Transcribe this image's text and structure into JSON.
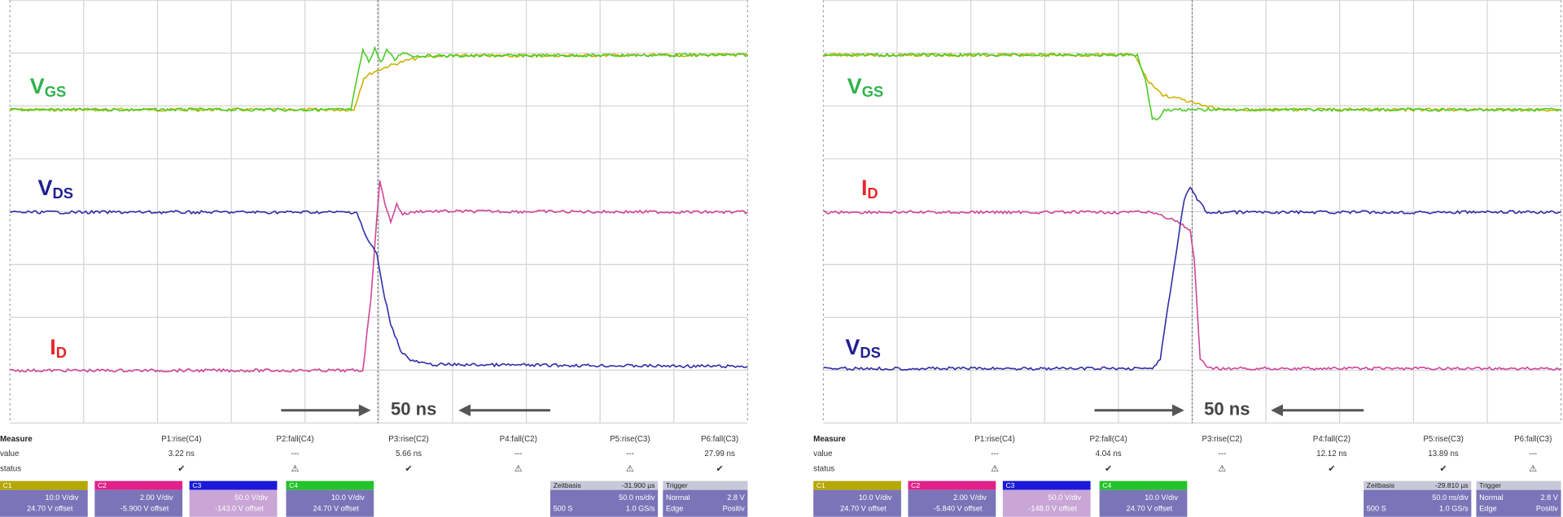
{
  "panels": [
    {
      "labels": {
        "vgs": {
          "main": "V",
          "sub": "GS",
          "color": "#2fb34a"
        },
        "vds": {
          "main": "V",
          "sub": "DS",
          "color": "#1f1f8f"
        },
        "id": {
          "main": "I",
          "sub": "D",
          "color": "#e8262b"
        }
      },
      "arrow_label": "50 ns",
      "measure": {
        "title": "Measure",
        "row_labels": [
          "value",
          "status"
        ],
        "columns": [
          "P1:rise(C4)",
          "P2:fall(C4)",
          "P3:rise(C2)",
          "P4:fall(C2)",
          "P5:rise(C3)",
          "P6:fall(C3)"
        ],
        "values": [
          "3.22 ns",
          "---",
          "5.66 ns",
          "---",
          "---",
          "27.99 ns"
        ],
        "status": [
          "✔",
          "⚠",
          "✔",
          "⚠",
          "⚠",
          "✔"
        ]
      },
      "channels": [
        {
          "name": "C1",
          "color": "#b5a800",
          "vdiv": "10.0 V/div",
          "offset": "24.70 V offset"
        },
        {
          "name": "C2",
          "color": "#e0228a",
          "vdiv": "2.00 V/div",
          "offset": "-5.900 V offset"
        },
        {
          "name": "C3",
          "color": "#1a1ad8",
          "vdiv": "50.0 V/div",
          "offset": "-143.0 V offset"
        },
        {
          "name": "C4",
          "color": "#22c42a",
          "vdiv": "10.0 V/div",
          "offset": "24.70 V offset"
        }
      ],
      "timebase": {
        "title": "Zeitbasis",
        "delay": "-31.900 µs",
        "div": "50.0 ns/div",
        "samples": "500 S",
        "rate": "1.0 GS/s"
      },
      "trigger": {
        "title": "Trigger",
        "level": "2.8 V",
        "mode": "Normal",
        "type": "Edge",
        "slope": "Positiv"
      }
    },
    {
      "labels": {
        "vgs": {
          "main": "V",
          "sub": "GS",
          "color": "#2fb34a"
        },
        "id": {
          "main": "I",
          "sub": "D",
          "color": "#e8262b"
        },
        "vds": {
          "main": "V",
          "sub": "DS",
          "color": "#1f1f8f"
        }
      },
      "arrow_label": "50 ns",
      "measure": {
        "title": "Measure",
        "row_labels": [
          "value",
          "status"
        ],
        "columns": [
          "P1:rise(C4)",
          "P2:fall(C4)",
          "P3:rise(C2)",
          "P4:fall(C2)",
          "P5:rise(C3)",
          "P6:fall(C3)"
        ],
        "values": [
          "---",
          "4.04 ns",
          "---",
          "12.12 ns",
          "13.89 ns",
          "---"
        ],
        "status": [
          "⚠",
          "✔",
          "⚠",
          "✔",
          "✔",
          "⚠"
        ]
      },
      "channels": [
        {
          "name": "C1",
          "color": "#b5a800",
          "vdiv": "10.0 V/div",
          "offset": "24.70 V offset"
        },
        {
          "name": "C2",
          "color": "#e0228a",
          "vdiv": "2.00 V/div",
          "offset": "-5.840 V offset"
        },
        {
          "name": "C3",
          "color": "#1a1ad8",
          "vdiv": "50.0 V/div",
          "offset": "-148.0 V offset"
        },
        {
          "name": "C4",
          "color": "#22c42a",
          "vdiv": "10.0 V/div",
          "offset": "24.70 V offset"
        }
      ],
      "timebase": {
        "title": "Zeitbasis",
        "delay": "-29.810 µs",
        "div": "50.0 ns/div",
        "samples": "500 S",
        "rate": "1.0 GS/s"
      },
      "trigger": {
        "title": "Trigger",
        "level": "2.8 V",
        "mode": "Normal",
        "type": "Edge",
        "slope": "Positiv"
      }
    }
  ]
}
